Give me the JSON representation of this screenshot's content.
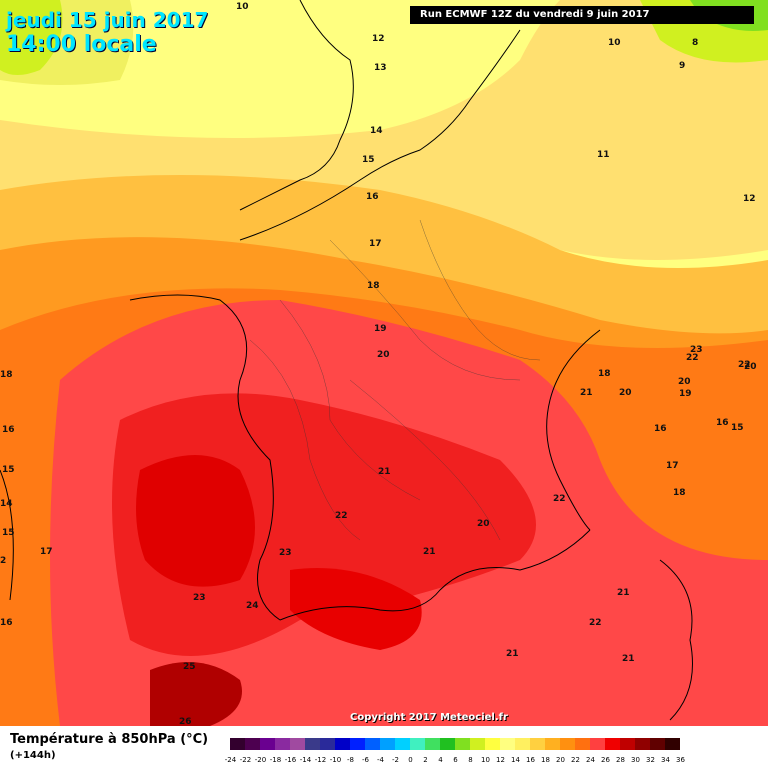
{
  "header": {
    "date": "jeudi 15 juin 2017",
    "time": "14:00 locale",
    "run": "Run ECMWF 12Z du vendredi 9 juin 2017"
  },
  "copyright": "Copyright 2017 Meteociel.fr",
  "footer": {
    "parameter": "Température à 850hPa (°C)",
    "lead": "(+144h)"
  },
  "scale": {
    "ticks": [
      "-24",
      "-22",
      "-20",
      "-18",
      "-16",
      "-14",
      "-12",
      "-10",
      "-8",
      "-6",
      "-4",
      "-2",
      "0",
      "2",
      "4",
      "6",
      "8",
      "10",
      "12",
      "14",
      "16",
      "18",
      "20",
      "22",
      "24",
      "26",
      "28",
      "30",
      "32",
      "34",
      "36"
    ],
    "colors": [
      "#33002e",
      "#4d0050",
      "#6a0090",
      "#8a2aa0",
      "#a04aa0",
      "#3a3a8a",
      "#2a2a9a",
      "#0000c8",
      "#0020ff",
      "#0060ff",
      "#00a0ff",
      "#00d0ff",
      "#40f0c0",
      "#40e060",
      "#20c020",
      "#80e020",
      "#d0f020",
      "#ffff40",
      "#ffff80",
      "#fff060",
      "#ffd040",
      "#ffb020",
      "#ff9010",
      "#ff7010",
      "#ff4040",
      "#f00000",
      "#c00000",
      "#900000",
      "#600000",
      "#300000"
    ]
  },
  "isotherms": [
    "10",
    "12",
    "13",
    "14",
    "15",
    "16",
    "17",
    "18",
    "19",
    "20",
    "21",
    "22",
    "23",
    "24",
    "25",
    "26",
    "8",
    "9",
    "10",
    "11",
    "12",
    "18",
    "16",
    "15",
    "14",
    "17",
    "16",
    "15",
    "2",
    "22",
    "23",
    "20",
    "22",
    "20",
    "19",
    "18",
    "21",
    "20",
    "16",
    "16",
    "15",
    "17",
    "18",
    "22",
    "21",
    "21",
    "22",
    "21",
    "20",
    "21",
    "23",
    "24",
    "22",
    "21"
  ]
}
